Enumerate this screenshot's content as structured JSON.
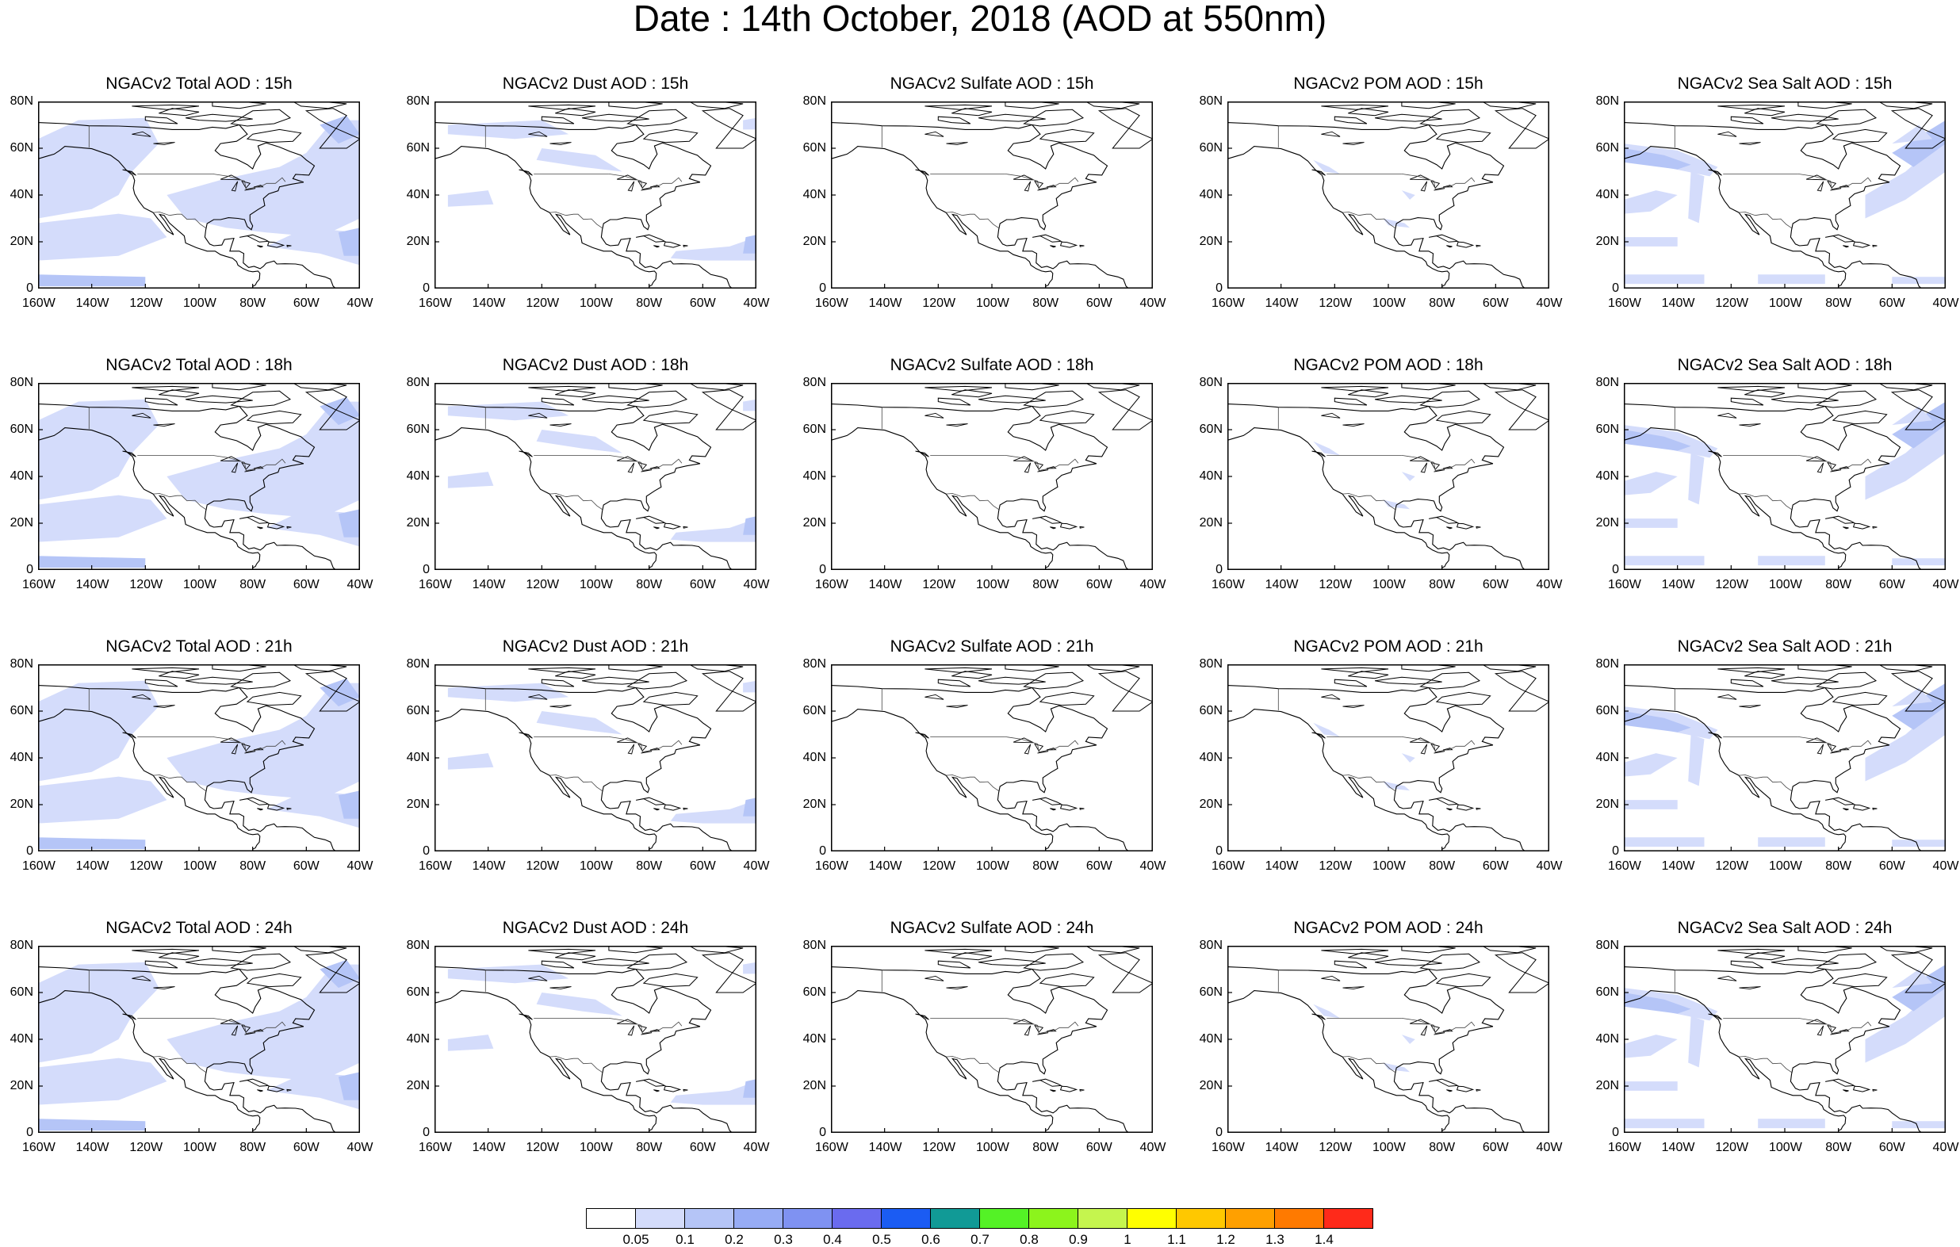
{
  "title": "Date : 14th October, 2018 (AOD at 550nm)",
  "x_ticks": [
    "160W",
    "140W",
    "120W",
    "100W",
    "80W",
    "60W",
    "40W"
  ],
  "y_ticks": [
    "80N",
    "60N",
    "40N",
    "20N",
    "0"
  ],
  "x_range": [
    -160,
    -40
  ],
  "y_range": [
    0,
    80
  ],
  "rows": [
    {
      "hour": "15h",
      "titles": [
        "NGACv2 Total AOD : 15h",
        "NGACv2 Dust AOD : 15h",
        "NGACv2 Sulfate AOD : 15h",
        "NGACv2 POM AOD : 15h",
        "NGACv2 Sea Salt AOD : 15h"
      ]
    },
    {
      "hour": "18h",
      "titles": [
        "NGACv2 Total AOD : 18h",
        "NGACv2 Dust AOD : 18h",
        "NGACv2 Sulfate AOD : 18h",
        "NGACv2 POM AOD : 18h",
        "NGACv2 Sea Salt AOD : 18h"
      ]
    },
    {
      "hour": "21h",
      "titles": [
        "NGACv2 Total AOD : 21h",
        "NGACv2 Dust AOD : 21h",
        "NGACv2 Sulfate AOD : 21h",
        "NGACv2 POM AOD : 21h",
        "NGACv2 Sea Salt AOD : 21h"
      ]
    },
    {
      "hour": "24h",
      "titles": [
        "NGACv2 Total AOD : 24h",
        "NGACv2 Dust AOD : 24h",
        "NGACv2 Sulfate AOD : 24h",
        "NGACv2 POM AOD : 24h",
        "NGACv2 Sea Salt  AOD : 24h"
      ]
    }
  ],
  "colorbar": {
    "labels": [
      "0.05",
      "0.1",
      "0.2",
      "0.3",
      "0.4",
      "0.5",
      "0.6",
      "0.7",
      "0.8",
      "0.9",
      "1",
      "1.1",
      "1.2",
      "1.3",
      "1.4"
    ],
    "colors": [
      "#ffffff",
      "#d4dcfb",
      "#b5c5f7",
      "#97acf5",
      "#7f92f2",
      "#6a6bef",
      "#1b5cf3",
      "#119a96",
      "#54f226",
      "#8cf41c",
      "#c5f54e",
      "#ffff00",
      "#ffc800",
      "#ffa000",
      "#ff7a00",
      "#ff2a1a"
    ]
  },
  "colors": {
    "low_aod": "#d4dcfb",
    "mid_aod": "#b5c5f7",
    "coast": "#000000"
  }
}
